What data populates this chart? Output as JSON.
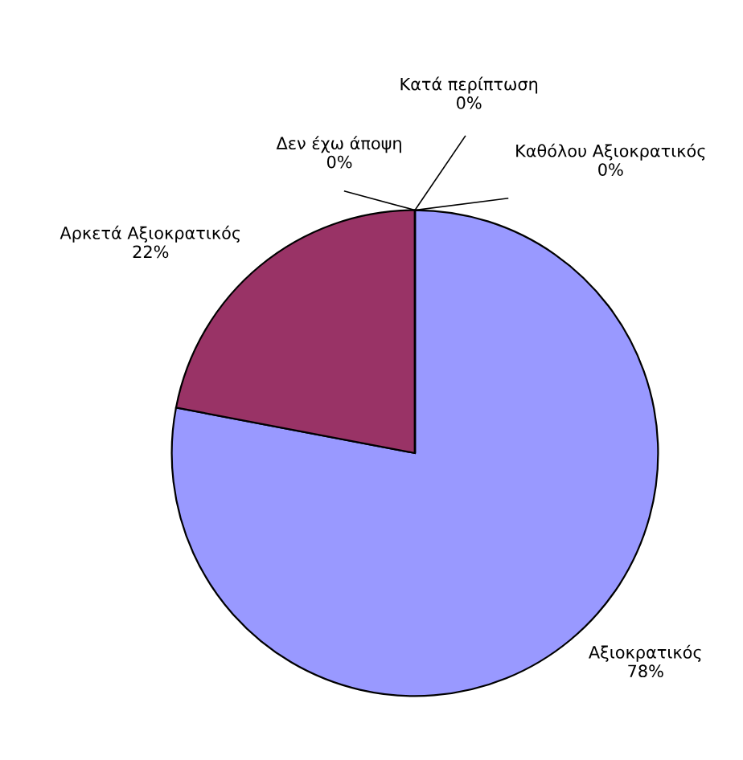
{
  "chart_data": {
    "type": "pie",
    "categories": [
      "Αξιοκρατικός",
      "Αρκετά Αξιοκρατικός",
      "Δεν έχω άποψη",
      "Κατά περίπτωση",
      "Καθόλου Αξιοκρατικός"
    ],
    "values": [
      78,
      22,
      0,
      0,
      0
    ],
    "value_labels": [
      "78%",
      "22%",
      "0%",
      "0%",
      "0%"
    ],
    "colors": [
      "#9999ff",
      "#993366",
      "#ffffcc",
      "#ccffff",
      "#660066"
    ]
  }
}
